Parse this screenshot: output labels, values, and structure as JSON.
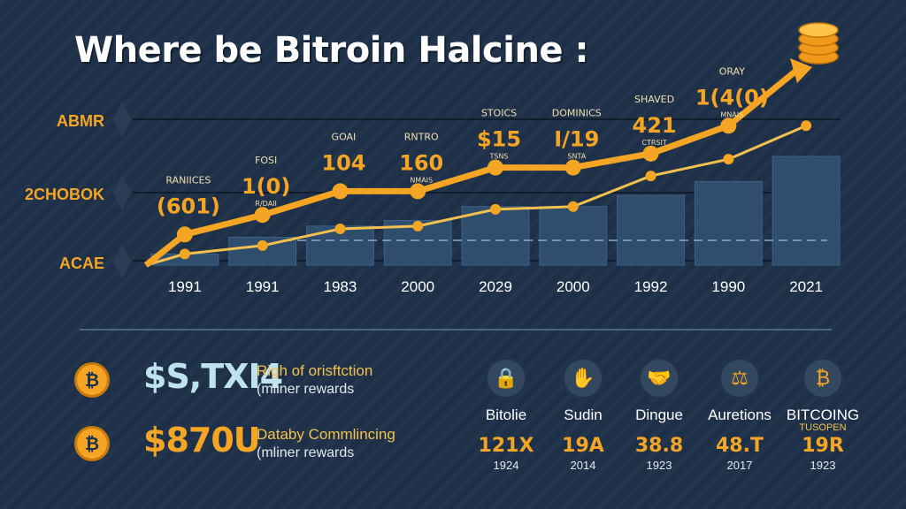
{
  "title": "Where be Bitroin Halcine :",
  "chart_data": {
    "type": "bar",
    "title": "Where be Bitroin Halcine :",
    "categories": [
      "1991",
      "1991",
      "1983",
      "2000",
      "2029",
      "2000",
      "1992",
      "1990",
      "2021"
    ],
    "y_tick_labels": [
      "ABMR",
      "2CHOBOK",
      "ACAE"
    ],
    "series": [
      {
        "values": [
          8,
          20,
          28,
          32,
          42,
          42,
          50,
          60,
          78
        ]
      },
      {
        "values": [
          22,
          36,
          53,
          53,
          70,
          70,
          80,
          100,
          118
        ]
      },
      {
        "values": [
          8,
          14,
          26,
          28,
          40,
          42,
          64,
          76,
          100
        ]
      }
    ],
    "ylim": [
      0,
      130
    ],
    "annotations": [
      {
        "index": 0,
        "label": "RANIICES",
        "value": "(601)"
      },
      {
        "index": 1,
        "label": "FOSI",
        "value": "1(0)",
        "sub": "R/DAII"
      },
      {
        "index": 2,
        "label": "GOAI",
        "value": "104"
      },
      {
        "index": 3,
        "label": "RNTRO",
        "value": "160",
        "sub": "NMAIS"
      },
      {
        "index": 4,
        "label": "STOICS",
        "value": "$15",
        "sub": "TSNS"
      },
      {
        "index": 5,
        "label": "DOMINICS",
        "value": "I/19",
        "sub": "SNTA"
      },
      {
        "index": 6,
        "label": "SHAVED",
        "value": "421",
        "sub": "CTRSIT"
      },
      {
        "index": 7,
        "label": "ORAY",
        "value": "1(4(0)",
        "sub": "MNAIS"
      }
    ],
    "grid": true,
    "legend": "none"
  },
  "stats": [
    {
      "amount": "$S,TXI4",
      "line1": "Righ of orisftction",
      "line2": "(mliner rewards"
    },
    {
      "amount": "$870U",
      "line1": "Databy Commlincing",
      "line2": "(mliner rewards"
    }
  ],
  "categories_row": [
    {
      "icon": "lock-icon",
      "glyph": "🔒",
      "name": "Bitolie",
      "sub": "",
      "value": "121X",
      "year": "1924"
    },
    {
      "icon": "hand-icon",
      "glyph": "✋",
      "name": "Sudin",
      "sub": "",
      "value": "19A",
      "year": "2014"
    },
    {
      "icon": "handshake-icon",
      "glyph": "🤝",
      "name": "Dingue",
      "sub": "",
      "value": "38.8",
      "year": "1923"
    },
    {
      "icon": "gavel-icon",
      "glyph": "⚖",
      "name": "Auretions",
      "sub": "",
      "value": "48.T",
      "year": "2017"
    },
    {
      "icon": "bitcoin-icon",
      "glyph": "₿",
      "name": "BITCOING",
      "sub": "TUSOPEN",
      "value": "19R",
      "year": "1923"
    }
  ],
  "colors": {
    "accent": "#f5a524",
    "background": "#1d3048",
    "bar": "#2f4d6c",
    "line_light": "#f2c14e"
  }
}
